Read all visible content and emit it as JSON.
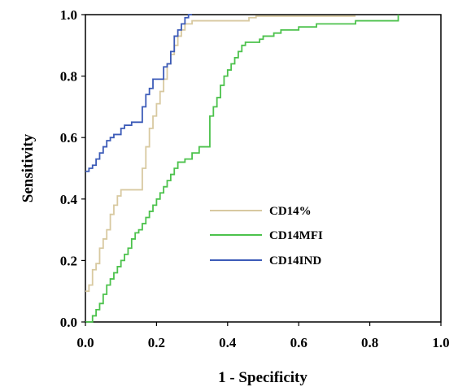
{
  "chart_data": {
    "type": "line",
    "xlabel": "1 - Specificity",
    "ylabel": "Sensitivity",
    "xlim": [
      0,
      1
    ],
    "ylim": [
      0,
      1
    ],
    "xticks": [
      "0.0",
      "0.2",
      "0.4",
      "0.6",
      "0.8",
      "1.0"
    ],
    "yticks": [
      "0.0",
      "0.2",
      "0.4",
      "0.6",
      "0.8",
      "1.0"
    ],
    "grid": false,
    "legend_position": "center-right",
    "series": [
      {
        "name": "CD14%",
        "color": "#d8c9a0",
        "x": [
          0,
          0.01,
          0.01,
          0.02,
          0.02,
          0.03,
          0.03,
          0.04,
          0.04,
          0.05,
          0.05,
          0.06,
          0.06,
          0.07,
          0.07,
          0.08,
          0.08,
          0.09,
          0.09,
          0.1,
          0.1,
          0.16,
          0.16,
          0.17,
          0.17,
          0.18,
          0.18,
          0.19,
          0.19,
          0.2,
          0.2,
          0.21,
          0.21,
          0.22,
          0.22,
          0.23,
          0.23,
          0.24,
          0.24,
          0.25,
          0.25,
          0.26,
          0.26,
          0.27,
          0.27,
          0.28,
          0.28,
          0.3,
          0.3,
          0.46,
          0.46,
          0.48,
          0.48,
          0.76
        ],
        "y": [
          0.1,
          0.1,
          0.12,
          0.12,
          0.17,
          0.17,
          0.19,
          0.19,
          0.24,
          0.24,
          0.27,
          0.27,
          0.3,
          0.3,
          0.35,
          0.35,
          0.38,
          0.38,
          0.41,
          0.41,
          0.43,
          0.43,
          0.5,
          0.5,
          0.57,
          0.57,
          0.63,
          0.63,
          0.67,
          0.67,
          0.71,
          0.71,
          0.75,
          0.75,
          0.79,
          0.79,
          0.84,
          0.84,
          0.87,
          0.87,
          0.9,
          0.9,
          0.93,
          0.93,
          0.95,
          0.95,
          0.97,
          0.97,
          0.98,
          0.98,
          0.99,
          0.99,
          0.995,
          0.995
        ]
      },
      {
        "name": "CD14MFI",
        "color": "#4cc24c",
        "x": [
          0,
          0.02,
          0.02,
          0.03,
          0.03,
          0.04,
          0.04,
          0.05,
          0.05,
          0.06,
          0.06,
          0.07,
          0.07,
          0.08,
          0.08,
          0.09,
          0.09,
          0.1,
          0.1,
          0.11,
          0.11,
          0.12,
          0.12,
          0.13,
          0.13,
          0.14,
          0.14,
          0.15,
          0.15,
          0.16,
          0.16,
          0.17,
          0.17,
          0.18,
          0.18,
          0.19,
          0.19,
          0.2,
          0.2,
          0.21,
          0.21,
          0.22,
          0.22,
          0.23,
          0.23,
          0.24,
          0.24,
          0.25,
          0.25,
          0.26,
          0.26,
          0.28,
          0.28,
          0.3,
          0.3,
          0.32,
          0.32,
          0.33,
          0.33,
          0.35,
          0.35,
          0.36,
          0.36,
          0.37,
          0.37,
          0.38,
          0.38,
          0.39,
          0.39,
          0.4,
          0.4,
          0.41,
          0.41,
          0.42,
          0.42,
          0.43,
          0.43,
          0.44,
          0.44,
          0.45,
          0.45,
          0.47,
          0.47,
          0.49,
          0.49,
          0.5,
          0.5,
          0.53,
          0.53,
          0.55,
          0.55,
          0.6,
          0.6,
          0.65,
          0.65,
          0.76,
          0.76,
          0.88,
          0.88
        ],
        "y": [
          0,
          0,
          0.02,
          0.02,
          0.04,
          0.04,
          0.06,
          0.06,
          0.09,
          0.09,
          0.12,
          0.12,
          0.14,
          0.14,
          0.16,
          0.16,
          0.18,
          0.18,
          0.2,
          0.2,
          0.22,
          0.22,
          0.24,
          0.24,
          0.27,
          0.27,
          0.29,
          0.29,
          0.3,
          0.3,
          0.32,
          0.32,
          0.34,
          0.34,
          0.36,
          0.36,
          0.38,
          0.38,
          0.4,
          0.4,
          0.42,
          0.42,
          0.44,
          0.44,
          0.46,
          0.46,
          0.48,
          0.48,
          0.5,
          0.5,
          0.52,
          0.52,
          0.53,
          0.53,
          0.55,
          0.55,
          0.57,
          0.57,
          0.57,
          0.57,
          0.67,
          0.67,
          0.7,
          0.7,
          0.73,
          0.73,
          0.77,
          0.77,
          0.8,
          0.8,
          0.82,
          0.82,
          0.84,
          0.84,
          0.86,
          0.86,
          0.88,
          0.88,
          0.9,
          0.9,
          0.91,
          0.91,
          0.91,
          0.91,
          0.92,
          0.92,
          0.93,
          0.93,
          0.94,
          0.94,
          0.95,
          0.95,
          0.96,
          0.96,
          0.97,
          0.97,
          0.98,
          0.98,
          1.0
        ]
      },
      {
        "name": "CD14IND",
        "color": "#3c5bb8",
        "x": [
          0,
          0.01,
          0.01,
          0.02,
          0.02,
          0.03,
          0.03,
          0.04,
          0.04,
          0.05,
          0.05,
          0.06,
          0.06,
          0.07,
          0.07,
          0.08,
          0.08,
          0.1,
          0.1,
          0.11,
          0.11,
          0.13,
          0.13,
          0.16,
          0.16,
          0.17,
          0.17,
          0.18,
          0.18,
          0.19,
          0.19,
          0.2,
          0.2,
          0.22,
          0.22,
          0.23,
          0.23,
          0.24,
          0.24,
          0.25,
          0.25,
          0.26,
          0.26,
          0.27,
          0.27,
          0.28,
          0.28,
          0.29,
          0.29,
          0.3
        ],
        "y": [
          0.49,
          0.49,
          0.5,
          0.5,
          0.51,
          0.51,
          0.53,
          0.53,
          0.55,
          0.55,
          0.57,
          0.57,
          0.59,
          0.59,
          0.6,
          0.6,
          0.61,
          0.61,
          0.63,
          0.63,
          0.64,
          0.64,
          0.65,
          0.65,
          0.7,
          0.7,
          0.74,
          0.74,
          0.76,
          0.76,
          0.79,
          0.79,
          0.79,
          0.79,
          0.83,
          0.83,
          0.84,
          0.84,
          0.88,
          0.88,
          0.93,
          0.93,
          0.95,
          0.95,
          0.97,
          0.97,
          0.99,
          0.99,
          1.0,
          1.0
        ]
      }
    ]
  }
}
